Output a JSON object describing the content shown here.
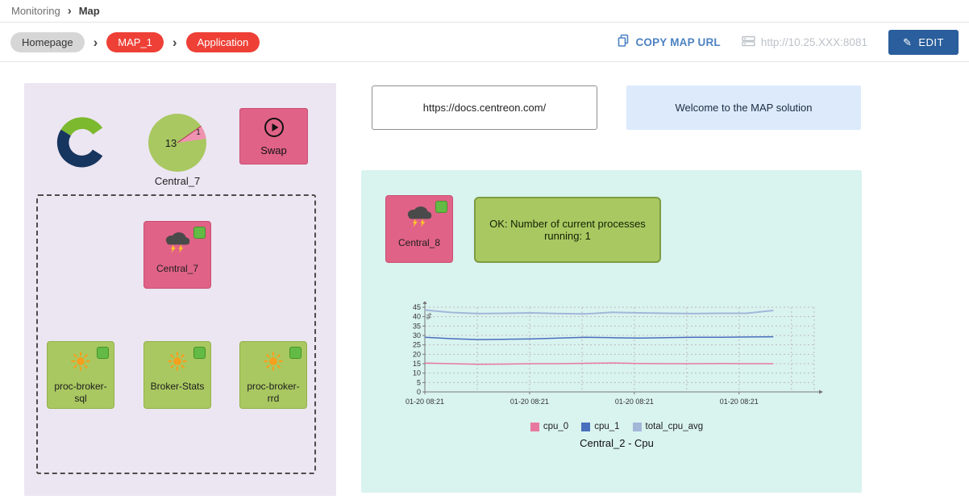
{
  "icons": {
    "chevron_right": "›",
    "pencil": "✎"
  },
  "breadcrumb": {
    "items": [
      "Monitoring",
      "Map"
    ]
  },
  "toolbar": {
    "path": [
      "Homepage",
      "MAP_1",
      "Application"
    ],
    "copy_map_url_label": "COPY MAP URL",
    "server_url": "http://10.25.XXX:8081",
    "edit_label": "EDIT"
  },
  "left_panel": {
    "gauge": {
      "value": "13",
      "slice_value": "1",
      "label": "Central_7"
    },
    "swap": {
      "label": "Swap"
    },
    "group": {
      "central_node": {
        "label": "Central_7"
      },
      "nodes": [
        {
          "label": "proc-broker-sql"
        },
        {
          "label": "Broker-Stats"
        },
        {
          "label": "proc-broker-rrd"
        }
      ]
    }
  },
  "widgets": {
    "doc_link": "https://docs.centreon.com/",
    "welcome_text": "Welcome to the MAP solution"
  },
  "right_panel": {
    "central_node": {
      "label": "Central_8"
    },
    "status_box": {
      "text": "OK: Number of current processes running: 1"
    }
  },
  "chart_data": {
    "type": "line",
    "title": "Central_2 - Cpu",
    "ylabel": "%",
    "xlabel": "",
    "ylim": [
      0,
      45
    ],
    "yticks": [
      0,
      5,
      10,
      15,
      20,
      25,
      30,
      35,
      40,
      45
    ],
    "x_labels": [
      "01-20 08:21",
      "01-20 08:21",
      "01-20 08:21",
      "01-20 08:21"
    ],
    "grid": true,
    "legend_position": "bottom",
    "series": [
      {
        "name": "cpu_0",
        "color": "#e8799e",
        "width": 1.5,
        "values": [
          15.3,
          15.0,
          14.7,
          14.8,
          15.0,
          15.0,
          15.2,
          15.4,
          15.1,
          15.0,
          15.0,
          15.1,
          15.0,
          15.0
        ]
      },
      {
        "name": "cpu_1",
        "color": "#4a6fbd",
        "width": 1.5,
        "values": [
          29.0,
          28.3,
          27.8,
          28.0,
          28.2,
          28.6,
          29.0,
          28.8,
          28.6,
          28.8,
          29.0,
          29.0,
          29.2,
          29.3
        ]
      },
      {
        "name": "total_cpu_avg",
        "color": "#a3b7d9",
        "width": 2,
        "values": [
          43.5,
          42.2,
          41.6,
          41.8,
          42.0,
          41.6,
          41.5,
          42.3,
          42.0,
          41.8,
          41.6,
          41.8,
          41.8,
          43.3
        ]
      }
    ]
  },
  "colors": {
    "badge_red": "#ee4036",
    "node_pink": "#e06287",
    "node_green": "#a9c861",
    "status_ok_green": "#63bb46",
    "edit_button_blue": "#2a5e9c",
    "copy_link_blue": "#4d82c2",
    "left_panel_bg": "#ece6f2",
    "right_panel_bg": "#d9f3ef",
    "welcome_bg": "#dceafc"
  }
}
